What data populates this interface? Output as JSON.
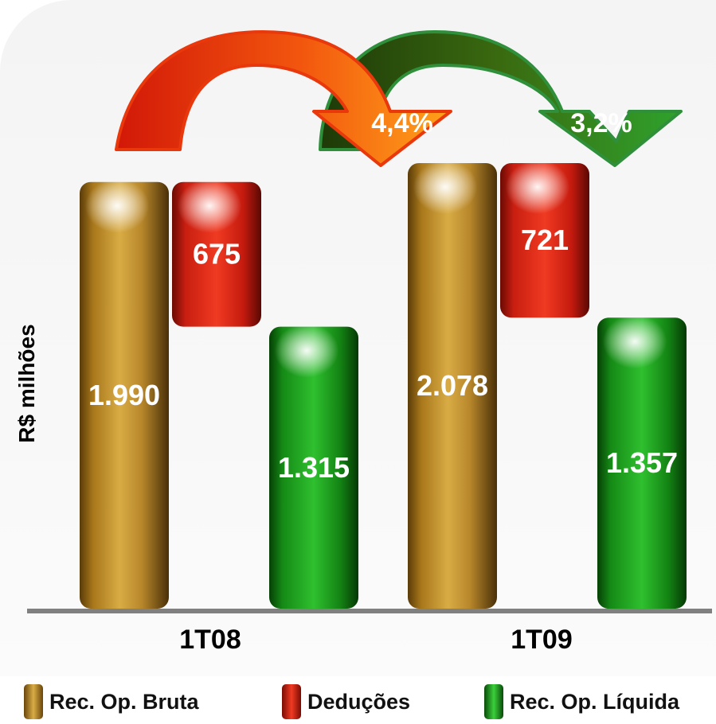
{
  "colors": {
    "gross": "#c8962a",
    "deductions": "#e02a1a",
    "net": "#1ea21e",
    "arrow_red": "#e8380c",
    "arrow_green": "#2f8f3a"
  },
  "chart_data": {
    "type": "bar",
    "ylabel": "R$ milhões",
    "categories": [
      "1T08",
      "1T09"
    ],
    "series": [
      {
        "name": "Rec. Op. Bruta",
        "values": [
          1990,
          2078
        ],
        "labels": [
          "1.990",
          "2.078"
        ]
      },
      {
        "name": "Deduções",
        "values": [
          675,
          721
        ],
        "labels": [
          "675",
          "721"
        ]
      },
      {
        "name": "Rec. Op. Líquida",
        "values": [
          1315,
          1357
        ],
        "labels": [
          "1.315",
          "1.357"
        ]
      }
    ],
    "annotations": [
      {
        "text": "4,4%",
        "from": "1T08 Rec. Op. Bruta",
        "to": "1T09 Rec. Op. Bruta"
      },
      {
        "text": "3,2%",
        "from": "1T08 Rec. Op. Líquida",
        "to": "1T09 Rec. Op. Líquida"
      }
    ],
    "legend_position": "bottom",
    "grid": false
  }
}
